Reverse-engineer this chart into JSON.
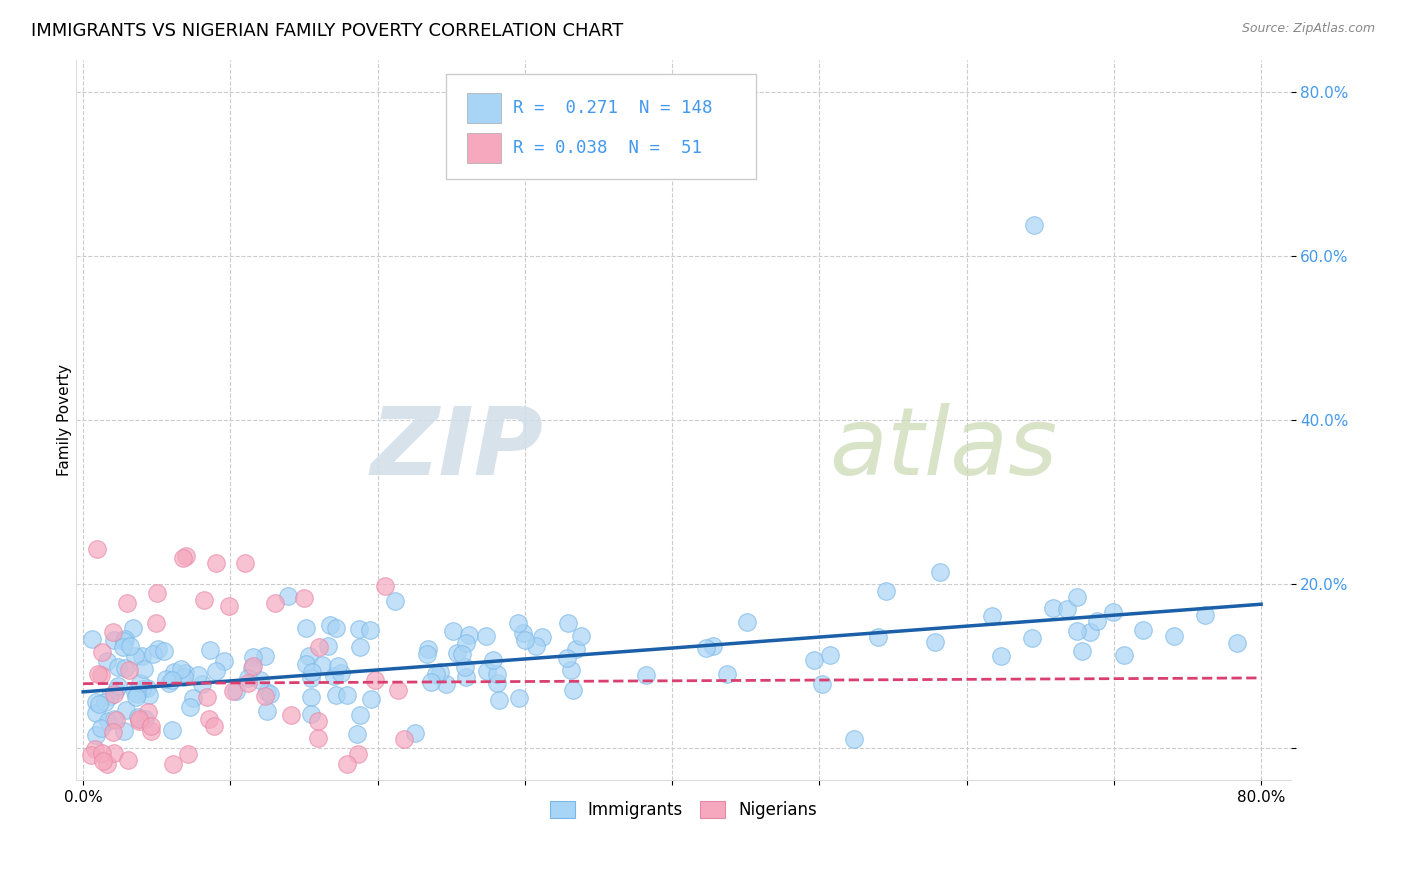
{
  "title": "IMMIGRANTS VS NIGERIAN FAMILY POVERTY CORRELATION CHART",
  "source": "Source: ZipAtlas.com",
  "ylabel": "Family Poverty",
  "xlim": [
    -0.005,
    0.82
  ],
  "ylim": [
    -0.04,
    0.84
  ],
  "immigrants_R": 0.271,
  "immigrants_N": 148,
  "nigerians_R": 0.038,
  "nigerians_N": 51,
  "immigrants_color": "#A8D4F5",
  "nigerians_color": "#F5A8BE",
  "immigrants_line_color": "#1a5fa8",
  "nigerians_line_color": "#d94070",
  "legend_label_immigrants": "Immigrants",
  "legend_label_nigerians": "Nigerians",
  "watermark_zip": "ZIP",
  "watermark_atlas": "atlas",
  "background_color": "#ffffff",
  "grid_color": "#cccccc",
  "title_fontsize": 13,
  "tick_color": "#4499ee",
  "ytick_labels": [
    "",
    "20.0%",
    "40.0%",
    "60.0%",
    "80.0%"
  ],
  "ytick_vals": [
    0.0,
    0.2,
    0.4,
    0.6,
    0.8
  ]
}
